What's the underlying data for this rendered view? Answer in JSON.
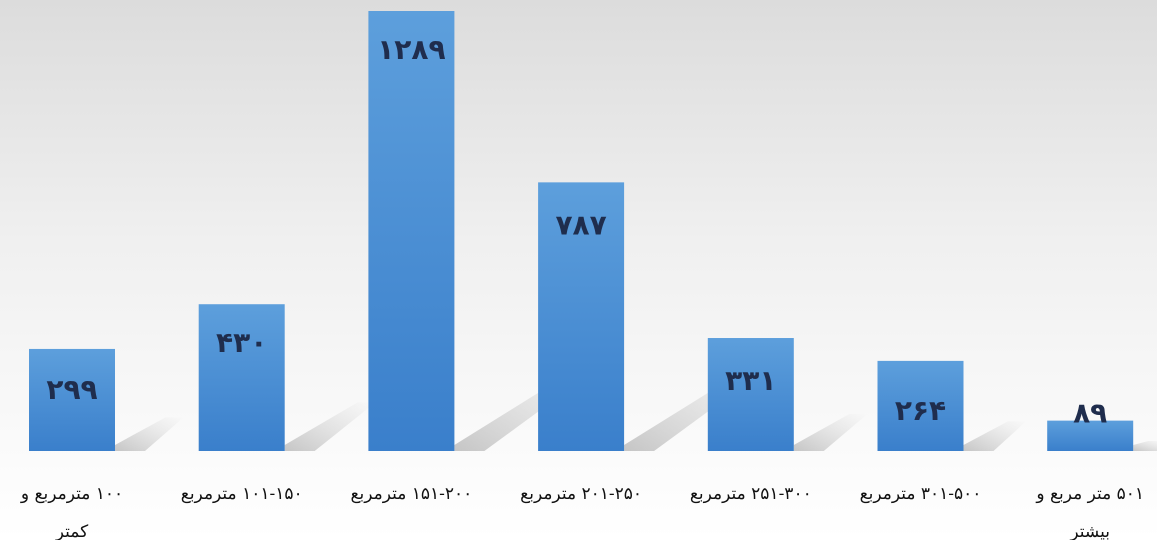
{
  "chart_data": {
    "type": "bar",
    "categories": [
      [
        "۱۰۰ مترمربع و",
        "کمتر"
      ],
      [
        "۱۰۱-۱۵۰ مترمربع"
      ],
      [
        "۱۵۱-۲۰۰ مترمربع"
      ],
      [
        "۲۰۱-۲۵۰ مترمربع"
      ],
      [
        "۲۵۱-۳۰۰ مترمربع"
      ],
      [
        "۳۰۱-۵۰۰ مترمربع"
      ],
      [
        "۵۰۱ متر مربع و",
        "بیشتر"
      ]
    ],
    "values": [
      299,
      430,
      1289,
      787,
      331,
      264,
      89
    ],
    "data_labels": [
      "۲۹۹",
      "۴۳۰",
      "۱۲۸۹",
      "۷۸۷",
      "۳۳۱",
      "۲۶۴",
      "۸۹"
    ],
    "title": "",
    "xlabel": "",
    "ylabel": "",
    "ylim": [
      0,
      1289
    ],
    "grid": false,
    "legend": "none",
    "colors": {
      "bar_top": "#5d9fdc",
      "bar_bottom": "#3a7fcb",
      "label": "#1f2d4d",
      "bg_top": "#dcdcdc",
      "bg_bottom": "#ffffff"
    }
  }
}
